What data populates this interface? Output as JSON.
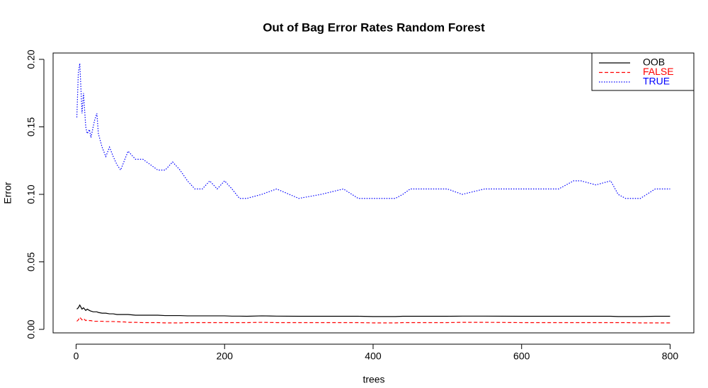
{
  "chart_data": {
    "type": "line",
    "title": "Out of Bag Error Rates Random Forest",
    "x_label": "trees",
    "y_label": "Error",
    "xlim": [
      -30.96,
      831.96
    ],
    "ylim": [
      -0.0026,
      0.2047
    ],
    "xticks": [
      0,
      200,
      400,
      600,
      800
    ],
    "yticks": [
      {
        "value": 0,
        "label": "0.00"
      },
      {
        "value": 0.05,
        "label": "0.05"
      },
      {
        "value": 0.1,
        "label": "0.10"
      },
      {
        "value": 0.15,
        "label": "0.15"
      },
      {
        "value": 0.2,
        "label": "0.20"
      }
    ],
    "legend": "top-right",
    "x": [
      1,
      3,
      5,
      8,
      10,
      13,
      15,
      18,
      20,
      23,
      25,
      28,
      30,
      35,
      40,
      45,
      50,
      55,
      60,
      65,
      70,
      80,
      90,
      100,
      110,
      120,
      130,
      140,
      150,
      160,
      170,
      180,
      190,
      200,
      210,
      220,
      230,
      250,
      270,
      300,
      330,
      360,
      380,
      400,
      430,
      440,
      450,
      500,
      520,
      550,
      600,
      650,
      670,
      680,
      700,
      720,
      730,
      740,
      760,
      780,
      800
    ],
    "series": [
      {
        "name": "OOB",
        "color": "#000000",
        "dash": "solid",
        "values": [
          0.015,
          0.016,
          0.018,
          0.015,
          0.016,
          0.014,
          0.015,
          0.014,
          0.0135,
          0.013,
          0.013,
          0.013,
          0.0125,
          0.012,
          0.012,
          0.0115,
          0.0115,
          0.011,
          0.011,
          0.011,
          0.011,
          0.0105,
          0.0105,
          0.0105,
          0.0105,
          0.0102,
          0.0102,
          0.0102,
          0.01,
          0.01,
          0.01,
          0.01,
          0.01,
          0.01,
          0.0098,
          0.0098,
          0.0097,
          0.01,
          0.0098,
          0.0097,
          0.0097,
          0.0097,
          0.0097,
          0.0095,
          0.0095,
          0.0097,
          0.0097,
          0.0097,
          0.0098,
          0.0098,
          0.0097,
          0.0097,
          0.0097,
          0.0097,
          0.0097,
          0.0097,
          0.0095,
          0.0095,
          0.0095,
          0.0097,
          0.0097
        ]
      },
      {
        "name": "FALSE",
        "color": "#ff0000",
        "dash": "dashed",
        "values": [
          0.006,
          0.007,
          0.009,
          0.007,
          0.008,
          0.0065,
          0.007,
          0.0065,
          0.0065,
          0.006,
          0.006,
          0.006,
          0.006,
          0.006,
          0.0058,
          0.0058,
          0.0058,
          0.0057,
          0.0055,
          0.0055,
          0.0052,
          0.0052,
          0.005,
          0.005,
          0.005,
          0.0048,
          0.0048,
          0.0048,
          0.005,
          0.005,
          0.005,
          0.005,
          0.005,
          0.005,
          0.005,
          0.005,
          0.005,
          0.0052,
          0.005,
          0.005,
          0.005,
          0.005,
          0.005,
          0.0048,
          0.0048,
          0.005,
          0.005,
          0.005,
          0.0052,
          0.0052,
          0.005,
          0.005,
          0.005,
          0.005,
          0.005,
          0.005,
          0.005,
          0.005,
          0.0048,
          0.0048,
          0.0048
        ]
      },
      {
        "name": "TRUE",
        "color": "#0000ff",
        "dash": "dotted",
        "values": [
          0.157,
          0.19,
          0.197,
          0.16,
          0.175,
          0.15,
          0.145,
          0.148,
          0.142,
          0.15,
          0.155,
          0.16,
          0.145,
          0.135,
          0.128,
          0.135,
          0.128,
          0.122,
          0.118,
          0.125,
          0.132,
          0.126,
          0.126,
          0.122,
          0.118,
          0.118,
          0.124,
          0.118,
          0.11,
          0.104,
          0.104,
          0.11,
          0.104,
          0.11,
          0.104,
          0.097,
          0.097,
          0.1,
          0.104,
          0.097,
          0.1,
          0.104,
          0.097,
          0.097,
          0.097,
          0.1,
          0.104,
          0.104,
          0.1,
          0.104,
          0.104,
          0.104,
          0.11,
          0.11,
          0.107,
          0.11,
          0.1,
          0.097,
          0.097,
          0.104,
          0.104
        ]
      }
    ]
  }
}
